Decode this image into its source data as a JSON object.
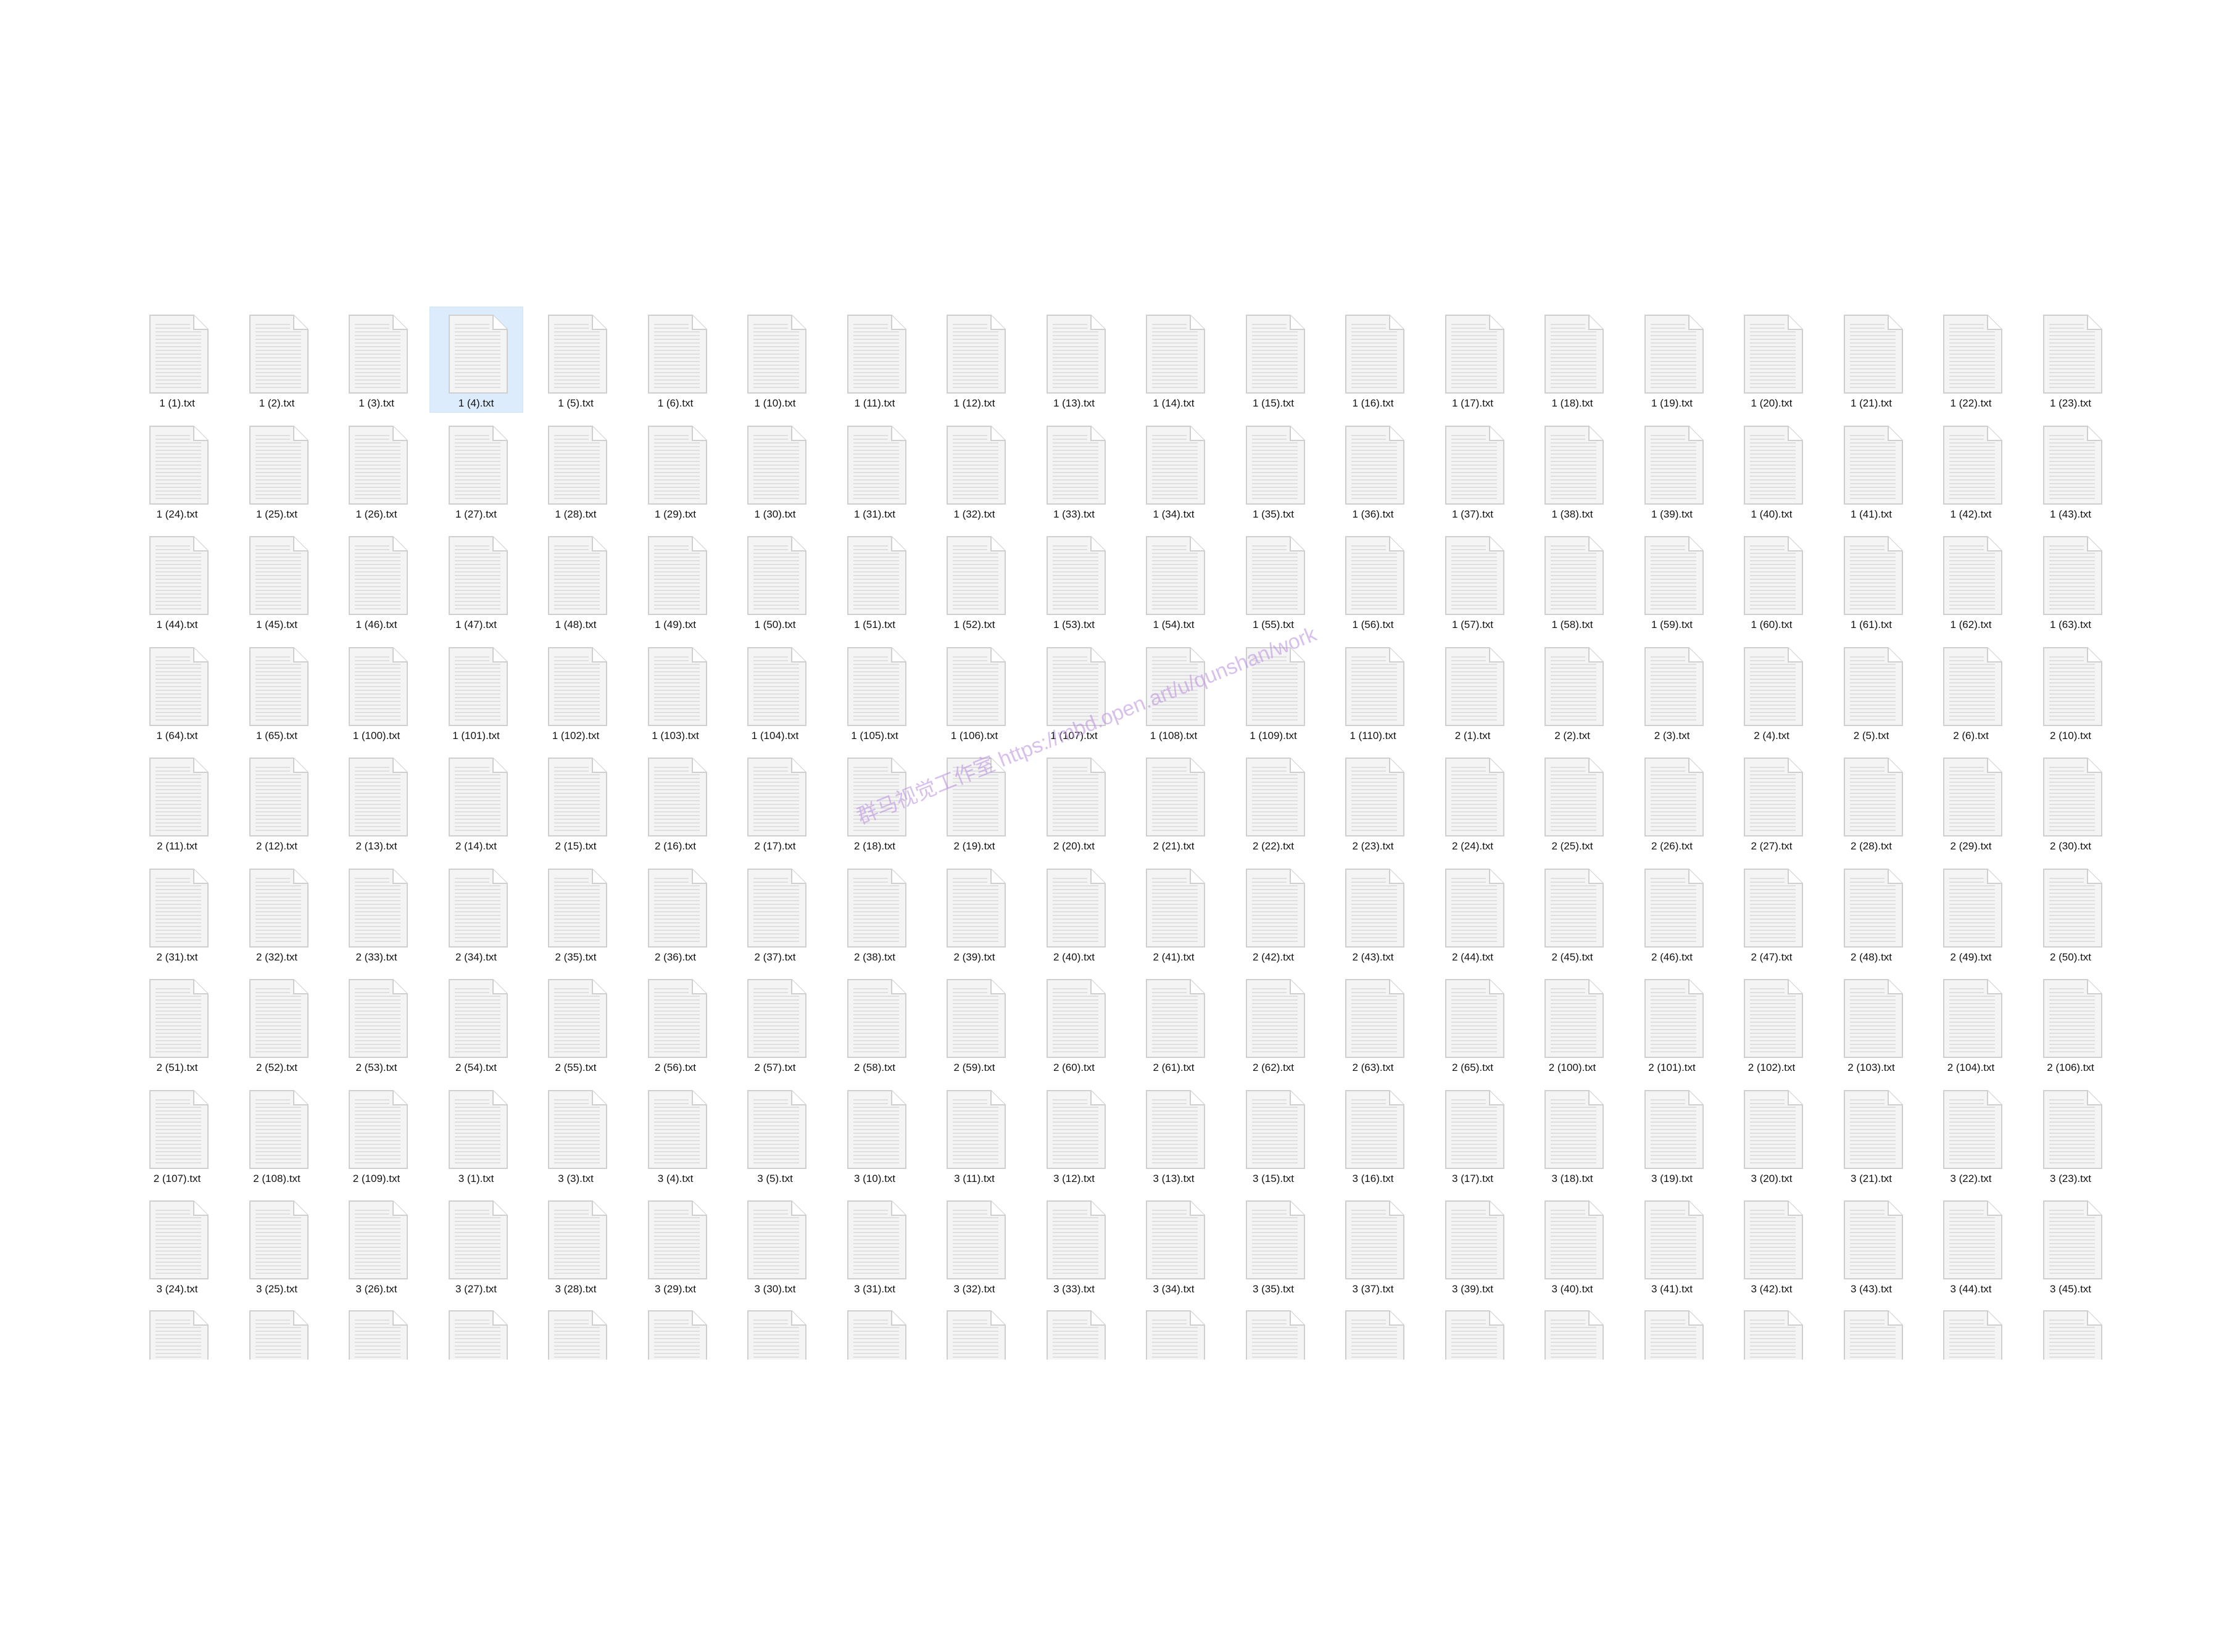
{
  "icons": {
    "file": "text-file-icon"
  },
  "colors": {
    "selection_background": "#dcecfc",
    "watermark": "#b88cdc"
  },
  "selected_file": "1 (4).txt",
  "watermark_text": "群马视觉工作室 https://mbd.open.art/u/qunshan/work",
  "files": [
    "1 (1).txt",
    "1 (2).txt",
    "1 (3).txt",
    "1 (4).txt",
    "1 (5).txt",
    "1 (6).txt",
    "1 (10).txt",
    "1 (11).txt",
    "1 (12).txt",
    "1 (13).txt",
    "1 (14).txt",
    "1 (15).txt",
    "1 (16).txt",
    "1 (17).txt",
    "1 (18).txt",
    "1 (19).txt",
    "1 (20).txt",
    "1 (21).txt",
    "1 (22).txt",
    "1 (23).txt",
    "1 (24).txt",
    "1 (25).txt",
    "1 (26).txt",
    "1 (27).txt",
    "1 (28).txt",
    "1 (29).txt",
    "1 (30).txt",
    "1 (31).txt",
    "1 (32).txt",
    "1 (33).txt",
    "1 (34).txt",
    "1 (35).txt",
    "1 (36).txt",
    "1 (37).txt",
    "1 (38).txt",
    "1 (39).txt",
    "1 (40).txt",
    "1 (41).txt",
    "1 (42).txt",
    "1 (43).txt",
    "1 (44).txt",
    "1 (45).txt",
    "1 (46).txt",
    "1 (47).txt",
    "1 (48).txt",
    "1 (49).txt",
    "1 (50).txt",
    "1 (51).txt",
    "1 (52).txt",
    "1 (53).txt",
    "1 (54).txt",
    "1 (55).txt",
    "1 (56).txt",
    "1 (57).txt",
    "1 (58).txt",
    "1 (59).txt",
    "1 (60).txt",
    "1 (61).txt",
    "1 (62).txt",
    "1 (63).txt",
    "1 (64).txt",
    "1 (65).txt",
    "1 (100).txt",
    "1 (101).txt",
    "1 (102).txt",
    "1 (103).txt",
    "1 (104).txt",
    "1 (105).txt",
    "1 (106).txt",
    "1 (107).txt",
    "1 (108).txt",
    "1 (109).txt",
    "1 (110).txt",
    "2 (1).txt",
    "2 (2).txt",
    "2 (3).txt",
    "2 (4).txt",
    "2 (5).txt",
    "2 (6).txt",
    "2 (10).txt",
    "2 (11).txt",
    "2 (12).txt",
    "2 (13).txt",
    "2 (14).txt",
    "2 (15).txt",
    "2 (16).txt",
    "2 (17).txt",
    "2 (18).txt",
    "2 (19).txt",
    "2 (20).txt",
    "2 (21).txt",
    "2 (22).txt",
    "2 (23).txt",
    "2 (24).txt",
    "2 (25).txt",
    "2 (26).txt",
    "2 (27).txt",
    "2 (28).txt",
    "2 (29).txt",
    "2 (30).txt",
    "2 (31).txt",
    "2 (32).txt",
    "2 (33).txt",
    "2 (34).txt",
    "2 (35).txt",
    "2 (36).txt",
    "2 (37).txt",
    "2 (38).txt",
    "2 (39).txt",
    "2 (40).txt",
    "2 (41).txt",
    "2 (42).txt",
    "2 (43).txt",
    "2 (44).txt",
    "2 (45).txt",
    "2 (46).txt",
    "2 (47).txt",
    "2 (48).txt",
    "2 (49).txt",
    "2 (50).txt",
    "2 (51).txt",
    "2 (52).txt",
    "2 (53).txt",
    "2 (54).txt",
    "2 (55).txt",
    "2 (56).txt",
    "2 (57).txt",
    "2 (58).txt",
    "2 (59).txt",
    "2 (60).txt",
    "2 (61).txt",
    "2 (62).txt",
    "2 (63).txt",
    "2 (65).txt",
    "2 (100).txt",
    "2 (101).txt",
    "2 (102).txt",
    "2 (103).txt",
    "2 (104).txt",
    "2 (106).txt",
    "2 (107).txt",
    "2 (108).txt",
    "2 (109).txt",
    "3 (1).txt",
    "3 (3).txt",
    "3 (4).txt",
    "3 (5).txt",
    "3 (10).txt",
    "3 (11).txt",
    "3 (12).txt",
    "3 (13).txt",
    "3 (15).txt",
    "3 (16).txt",
    "3 (17).txt",
    "3 (18).txt",
    "3 (19).txt",
    "3 (20).txt",
    "3 (21).txt",
    "3 (22).txt",
    "3 (23).txt",
    "3 (24).txt",
    "3 (25).txt",
    "3 (26).txt",
    "3 (27).txt",
    "3 (28).txt",
    "3 (29).txt",
    "3 (30).txt",
    "3 (31).txt",
    "3 (32).txt",
    "3 (33).txt",
    "3 (34).txt",
    "3 (35).txt",
    "3 (37).txt",
    "3 (39).txt",
    "3 (40).txt",
    "3 (41).txt",
    "3 (42).txt",
    "3 (43).txt",
    "3 (44).txt",
    "3 (45).txt"
  ]
}
